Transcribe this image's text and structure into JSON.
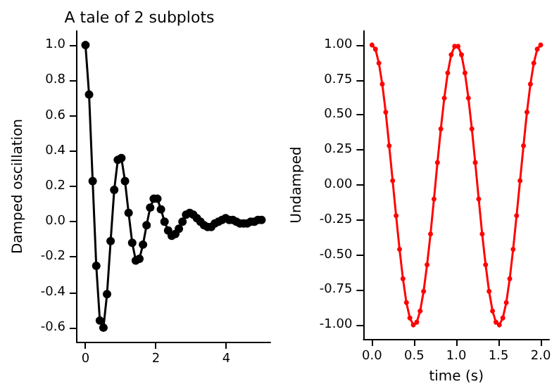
{
  "chart_data": [
    {
      "type": "line",
      "title": "A tale of 2 subplots",
      "ylabel": "Damped oscillation",
      "marker": "circle",
      "line_style": "solid",
      "grid": false,
      "xlim": [
        -0.25,
        5.25
      ],
      "xticks": [
        0,
        2,
        4
      ],
      "ylim": [
        -0.68,
        1.08
      ],
      "yticks": [
        {
          "value": -0.6,
          "label": "-0.6"
        },
        {
          "value": -0.4,
          "label": "-0.4"
        },
        {
          "value": -0.2,
          "label": "-0.2"
        },
        {
          "value": 0,
          "label": "0.0"
        },
        {
          "value": 0.2,
          "label": "0.2"
        },
        {
          "value": 0.4,
          "label": "0.4"
        },
        {
          "value": 0.6,
          "label": "0.6"
        },
        {
          "value": 0.8,
          "label": "0.8"
        },
        {
          "value": 1,
          "label": "1.0"
        }
      ],
      "x": [
        0,
        0.102,
        0.204,
        0.306,
        0.408,
        0.51,
        0.612,
        0.714,
        0.816,
        0.918,
        1.02,
        1.122,
        1.224,
        1.327,
        1.429,
        1.531,
        1.633,
        1.735,
        1.837,
        1.939,
        2.041,
        2.143,
        2.245,
        2.347,
        2.449,
        2.551,
        2.653,
        2.755,
        2.857,
        2.959,
        3.061,
        3.163,
        3.265,
        3.367,
        3.469,
        3.571,
        3.673,
        3.776,
        3.878,
        3.98,
        4.082,
        4.184,
        4.286,
        4.388,
        4.49,
        4.592,
        4.694,
        4.796,
        4.898,
        5
      ],
      "series": [
        {
          "color": "#000000",
          "values": [
            1,
            0.72,
            0.23,
            -0.25,
            -0.56,
            -0.6,
            -0.41,
            -0.11,
            0.18,
            0.35,
            0.36,
            0.23,
            0.05,
            -0.12,
            -0.22,
            -0.21,
            -0.13,
            -0.02,
            0.08,
            0.13,
            0.13,
            0.07,
            0,
            -0.05,
            -0.08,
            -0.07,
            -0.04,
            0,
            0.04,
            0.05,
            0.04,
            0.02,
            0,
            -0.02,
            -0.03,
            -0.03,
            -0.01,
            0,
            0.01,
            0.02,
            0.01,
            0.01,
            0,
            -0.01,
            -0.01,
            -0.01,
            0,
            0,
            0.01,
            0.01
          ]
        }
      ]
    },
    {
      "type": "line",
      "xlabel": "time (s)",
      "ylabel": "Undamped",
      "marker": "circle",
      "line_style": "solid",
      "grid": false,
      "xlim": [
        -0.1,
        2.1
      ],
      "xticks": [
        {
          "value": 0,
          "label": "0.0"
        },
        {
          "value": 0.5,
          "label": "0.5"
        },
        {
          "value": 1,
          "label": "1.0"
        },
        {
          "value": 1.5,
          "label": "1.5"
        },
        {
          "value": 2,
          "label": "2.0"
        }
      ],
      "ylim": [
        -1.1,
        1.1
      ],
      "yticks": [
        {
          "value": -1,
          "label": "-1.00"
        },
        {
          "value": -0.75,
          "label": "-0.75"
        },
        {
          "value": -0.5,
          "label": "-0.50"
        },
        {
          "value": -0.25,
          "label": "-0.25"
        },
        {
          "value": 0,
          "label": "0.00"
        },
        {
          "value": 0.25,
          "label": "0.25"
        },
        {
          "value": 0.5,
          "label": "0.50"
        },
        {
          "value": 0.75,
          "label": "0.75"
        },
        {
          "value": 1,
          "label": "1.00"
        }
      ],
      "x": [
        0,
        0.041,
        0.082,
        0.122,
        0.163,
        0.204,
        0.245,
        0.286,
        0.327,
        0.367,
        0.408,
        0.449,
        0.49,
        0.531,
        0.571,
        0.612,
        0.653,
        0.694,
        0.735,
        0.776,
        0.816,
        0.857,
        0.898,
        0.939,
        0.98,
        1.02,
        1.061,
        1.102,
        1.143,
        1.184,
        1.224,
        1.265,
        1.306,
        1.347,
        1.388,
        1.429,
        1.469,
        1.51,
        1.551,
        1.592,
        1.633,
        1.673,
        1.714,
        1.755,
        1.796,
        1.837,
        1.878,
        1.918,
        1.959,
        2
      ],
      "series": [
        {
          "color": "#ff0000",
          "values": [
            1,
            0.97,
            0.87,
            0.72,
            0.52,
            0.28,
            0.03,
            -0.22,
            -0.46,
            -0.67,
            -0.84,
            -0.95,
            -1,
            -0.98,
            -0.9,
            -0.76,
            -0.57,
            -0.35,
            -0.1,
            0.16,
            0.4,
            0.62,
            0.8,
            0.93,
            0.99,
            0.99,
            0.93,
            0.8,
            0.62,
            0.4,
            0.16,
            -0.1,
            -0.35,
            -0.57,
            -0.76,
            -0.9,
            -0.98,
            -1,
            -0.95,
            -0.84,
            -0.67,
            -0.46,
            -0.22,
            0.03,
            0.28,
            0.52,
            0.72,
            0.87,
            0.97,
            1
          ]
        }
      ]
    }
  ]
}
